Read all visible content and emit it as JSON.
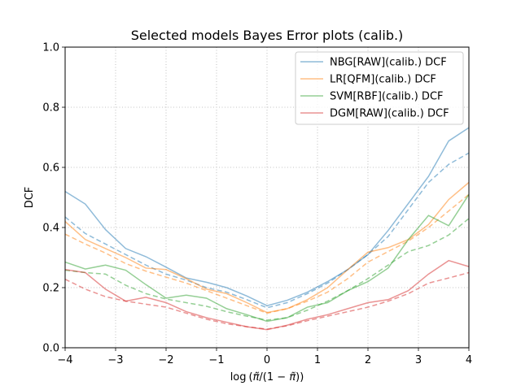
{
  "chart_data": {
    "type": "line",
    "title": "Selected models Bayes Error plots (calib.)",
    "xlabel_parts": [
      "log",
      "(",
      "π̃",
      "/(1 − ",
      "π̃",
      "))"
    ],
    "ylabel": "DCF",
    "xlim": [
      -4,
      4
    ],
    "ylim": [
      0,
      1.0
    ],
    "x_ticks": [
      -4,
      -3,
      -2,
      -1,
      0,
      1,
      2,
      3,
      4
    ],
    "x_tick_labels": [
      "−4",
      "−3",
      "−2",
      "−1",
      "0",
      "1",
      "2",
      "3",
      "4"
    ],
    "y_ticks": [
      0,
      0.2,
      0.4,
      0.6,
      0.8,
      1.0
    ],
    "y_tick_labels": [
      "0.0",
      "0.2",
      "0.4",
      "0.6",
      "0.8",
      "1.0"
    ],
    "grid": true,
    "legend_position": "top-right",
    "x": [
      -4,
      -3.6,
      -3.2,
      -2.8,
      -2.4,
      -2.0,
      -1.6,
      -1.2,
      -0.8,
      -0.4,
      0,
      0.4,
      0.8,
      1.2,
      1.6,
      2.0,
      2.4,
      2.8,
      3.2,
      3.6,
      4.0
    ],
    "series": [
      {
        "name": "NBG[RAW](calib.) DCF",
        "color": "#1f77b4",
        "solid": [
          0.52,
          0.478,
          0.393,
          0.33,
          0.303,
          0.268,
          0.232,
          0.218,
          0.2,
          0.172,
          0.14,
          0.158,
          0.185,
          0.22,
          0.26,
          0.31,
          0.39,
          0.48,
          0.57,
          0.688,
          0.732
        ],
        "dashed": [
          0.435,
          0.38,
          0.345,
          0.31,
          0.275,
          0.245,
          0.225,
          0.2,
          0.185,
          0.16,
          0.133,
          0.15,
          0.18,
          0.215,
          0.26,
          0.31,
          0.37,
          0.46,
          0.55,
          0.61,
          0.648
        ]
      },
      {
        "name": "LR[QFM](calib.) DCF",
        "color": "#ff7f0e",
        "solid": [
          0.42,
          0.36,
          0.33,
          0.3,
          0.265,
          0.26,
          0.23,
          0.195,
          0.18,
          0.15,
          0.117,
          0.13,
          0.16,
          0.2,
          0.26,
          0.318,
          0.333,
          0.36,
          0.41,
          0.493,
          0.55
        ],
        "dashed": [
          0.378,
          0.345,
          0.315,
          0.28,
          0.255,
          0.235,
          0.215,
          0.19,
          0.165,
          0.14,
          0.115,
          0.13,
          0.155,
          0.185,
          0.23,
          0.285,
          0.32,
          0.355,
          0.4,
          0.455,
          0.51
        ]
      },
      {
        "name": "SVM[RBF](calib.) DCF",
        "color": "#2ca02c",
        "solid": [
          0.285,
          0.262,
          0.275,
          0.258,
          0.21,
          0.165,
          0.175,
          0.165,
          0.13,
          0.11,
          0.088,
          0.1,
          0.135,
          0.15,
          0.19,
          0.22,
          0.265,
          0.36,
          0.44,
          0.406,
          0.51
        ],
        "dashed": [
          0.258,
          0.25,
          0.245,
          0.208,
          0.18,
          0.162,
          0.15,
          0.138,
          0.12,
          0.105,
          0.092,
          0.1,
          0.125,
          0.155,
          0.19,
          0.23,
          0.275,
          0.32,
          0.34,
          0.375,
          0.43
        ]
      },
      {
        "name": "DGM[RAW](calib.) DCF",
        "color": "#d62728",
        "solid": [
          0.26,
          0.25,
          0.195,
          0.155,
          0.168,
          0.15,
          0.12,
          0.1,
          0.085,
          0.07,
          0.06,
          0.075,
          0.095,
          0.11,
          0.13,
          0.15,
          0.16,
          0.19,
          0.245,
          0.29,
          0.27
        ],
        "dashed": [
          0.228,
          0.195,
          0.17,
          0.155,
          0.145,
          0.135,
          0.115,
          0.095,
          0.08,
          0.07,
          0.062,
          0.073,
          0.09,
          0.105,
          0.12,
          0.135,
          0.155,
          0.18,
          0.215,
          0.232,
          0.25
        ]
      }
    ]
  }
}
